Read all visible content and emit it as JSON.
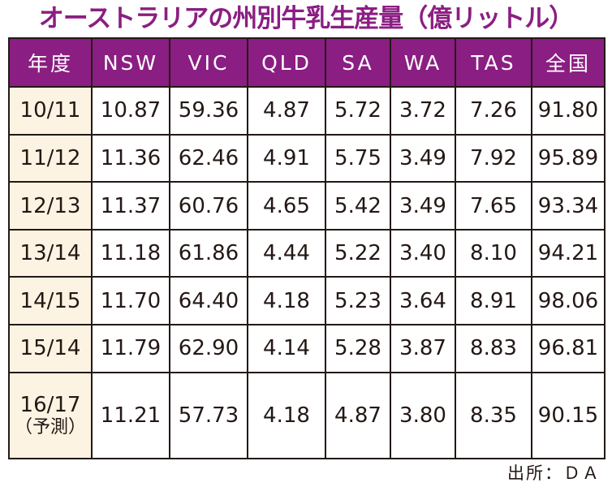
{
  "title": "オーストラリアの州別牛乳生産量（億リットル）",
  "source": "出所：ＤＡ",
  "colors": {
    "header_bg": "#8b1e82",
    "year_bg": "#fdf3e2",
    "title": "#8b1e82"
  },
  "chart_data": {
    "type": "table",
    "title": "オーストラリアの州別牛乳生産量（億リットル）",
    "columns": [
      "年度",
      "NSW",
      "VIC",
      "QLD",
      "SA",
      "WA",
      "TAS",
      "全国"
    ],
    "rows": [
      {
        "year": "10/11",
        "note": "",
        "values": [
          "10.87",
          "59.36",
          "4.87",
          "5.72",
          "3.72",
          "7.26",
          "91.80"
        ]
      },
      {
        "year": "11/12",
        "note": "",
        "values": [
          "11.36",
          "62.46",
          "4.91",
          "5.75",
          "3.49",
          "7.92",
          "95.89"
        ]
      },
      {
        "year": "12/13",
        "note": "",
        "values": [
          "11.37",
          "60.76",
          "4.65",
          "5.42",
          "3.49",
          "7.65",
          "93.34"
        ]
      },
      {
        "year": "13/14",
        "note": "",
        "values": [
          "11.18",
          "61.86",
          "4.44",
          "5.22",
          "3.40",
          "8.10",
          "94.21"
        ]
      },
      {
        "year": "14/15",
        "note": "",
        "values": [
          "11.70",
          "64.40",
          "4.18",
          "5.23",
          "3.64",
          "8.91",
          "98.06"
        ]
      },
      {
        "year": "15/14",
        "note": "",
        "values": [
          "11.79",
          "62.90",
          "4.14",
          "5.28",
          "3.87",
          "8.83",
          "96.81"
        ]
      },
      {
        "year": "16/17",
        "note": "（予測）",
        "values": [
          "11.21",
          "57.73",
          "4.18",
          "4.87",
          "3.80",
          "8.35",
          "90.15"
        ]
      }
    ]
  }
}
